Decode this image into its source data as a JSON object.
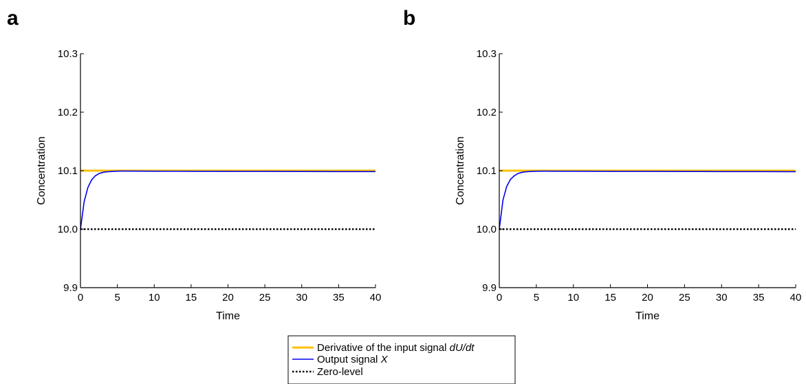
{
  "chart_data": [
    {
      "panel": "a",
      "type": "line",
      "xlabel": "Time",
      "ylabel": "Concentration",
      "xlim": [
        0,
        40
      ],
      "ylim": [
        9.9,
        10.3
      ],
      "xticks": [
        0,
        5,
        10,
        15,
        20,
        25,
        30,
        35,
        40
      ],
      "yticks": [
        "9.9",
        "10.0",
        "10.1",
        "10.2",
        "10.3"
      ],
      "grid": false,
      "series": [
        {
          "key": "input",
          "color": "#FFC000",
          "dash": "solid",
          "x": [
            0,
            40
          ],
          "y": [
            10.1,
            10.1
          ]
        },
        {
          "key": "output",
          "color": "#0000EE",
          "dash": "solid",
          "x": [
            0,
            0.5,
            1,
            1.5,
            2,
            2.5,
            3,
            3.5,
            4,
            5,
            6,
            8,
            10,
            15,
            20,
            25,
            30,
            35,
            40
          ],
          "y": [
            10.0,
            10.047,
            10.071,
            10.084,
            10.091,
            10.095,
            10.097,
            10.098,
            10.0985,
            10.0992,
            10.0993,
            10.0992,
            10.0991,
            10.0989,
            10.0988,
            10.0987,
            10.0986,
            10.0985,
            10.0984
          ]
        },
        {
          "key": "zero",
          "color": "#000000",
          "dash": "dotted",
          "x": [
            0,
            40
          ],
          "y": [
            10.0,
            10.0
          ]
        }
      ]
    },
    {
      "panel": "b",
      "type": "line",
      "xlabel": "Time",
      "ylabel": "Concentration",
      "xlim": [
        0,
        40
      ],
      "ylim": [
        9.9,
        10.3
      ],
      "xticks": [
        0,
        5,
        10,
        15,
        20,
        25,
        30,
        35,
        40
      ],
      "yticks": [
        "9.9",
        "10.0",
        "10.1",
        "10.2",
        "10.3"
      ],
      "grid": false,
      "series": [
        {
          "key": "input",
          "color": "#FFC000",
          "dash": "solid",
          "x": [
            0,
            40
          ],
          "y": [
            10.1,
            10.1
          ]
        },
        {
          "key": "output",
          "color": "#0000EE",
          "dash": "solid",
          "x": [
            0,
            0.5,
            1,
            1.5,
            2,
            2.5,
            3,
            3.5,
            4,
            5,
            6,
            8,
            10,
            15,
            20,
            25,
            30,
            35,
            40
          ],
          "y": [
            10.0,
            10.05,
            10.073,
            10.085,
            10.091,
            10.095,
            10.097,
            10.098,
            10.0985,
            10.0991,
            10.0992,
            10.0991,
            10.099,
            10.0988,
            10.0987,
            10.0986,
            10.0985,
            10.0984,
            10.0983
          ]
        },
        {
          "key": "zero",
          "color": "#000000",
          "dash": "dotted",
          "x": [
            0,
            40
          ],
          "y": [
            10.0,
            10.0
          ]
        }
      ]
    }
  ],
  "legend": {
    "placement": "bottom-center",
    "entries": [
      {
        "key": "input",
        "label": "Derivative of the input signal ",
        "italic": "dU/dt",
        "color": "#FFC000",
        "dash": "solid"
      },
      {
        "key": "output",
        "label": "Output signal ",
        "italic": "X",
        "color": "#0000EE",
        "dash": "solid"
      },
      {
        "key": "zero",
        "label": "Zero-level",
        "italic": "",
        "color": "#000000",
        "dash": "dotted"
      }
    ]
  }
}
